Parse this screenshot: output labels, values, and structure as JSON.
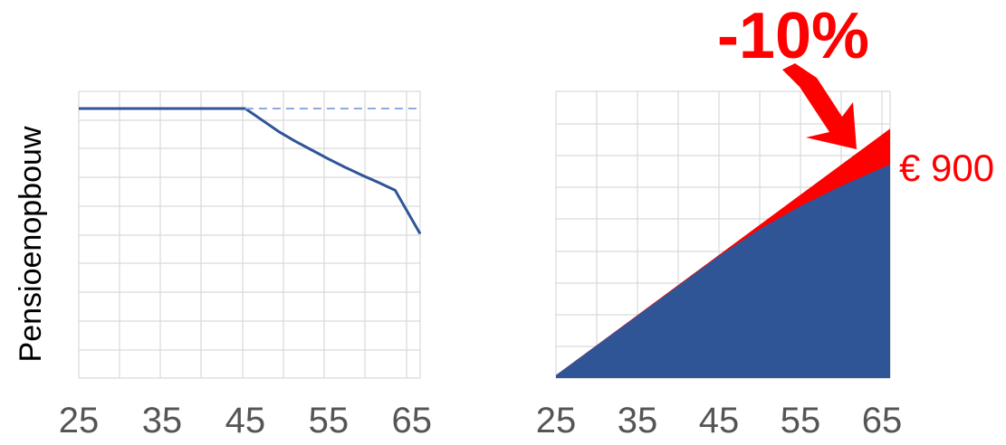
{
  "colors": {
    "series": "#2f5597",
    "reduction": "#ff0000",
    "grid": "#d9d9d9",
    "tick": "#555555"
  },
  "chart_data": [
    {
      "type": "line",
      "ylabel": "Pensioenopbouw",
      "x_ticks": [
        "25",
        "35",
        "45",
        "55",
        "65"
      ],
      "xlim": [
        25,
        66
      ],
      "ylim": [
        0,
        100
      ],
      "grid": true,
      "series": [
        {
          "style": "solid",
          "x": [
            25,
            45,
            47,
            49,
            51,
            53,
            55,
            57,
            59,
            61,
            63,
            66
          ],
          "y": [
            94,
            94,
            90,
            86,
            82.6,
            79.5,
            76.4,
            73.5,
            70.8,
            68.2,
            65.5,
            50.3
          ]
        },
        {
          "style": "dashed",
          "x": [
            45,
            66
          ],
          "y": [
            94,
            94
          ]
        }
      ]
    },
    {
      "type": "area",
      "x_ticks": [
        "25",
        "35",
        "45",
        "55",
        "65"
      ],
      "xlim": [
        25,
        66
      ],
      "ylim": [
        0,
        100
      ],
      "grid": true,
      "series": [
        {
          "style": "filled-top",
          "x": [
            25,
            66
          ],
          "y": [
            1,
            87
          ]
        },
        {
          "style": "filled-base",
          "x": [
            25,
            45,
            50,
            55,
            60,
            66
          ],
          "y": [
            1,
            42.6,
            52,
            60,
            67,
            74.5
          ]
        }
      ],
      "annotations": {
        "callout": "-10%",
        "value_label": "€ 900"
      }
    }
  ]
}
